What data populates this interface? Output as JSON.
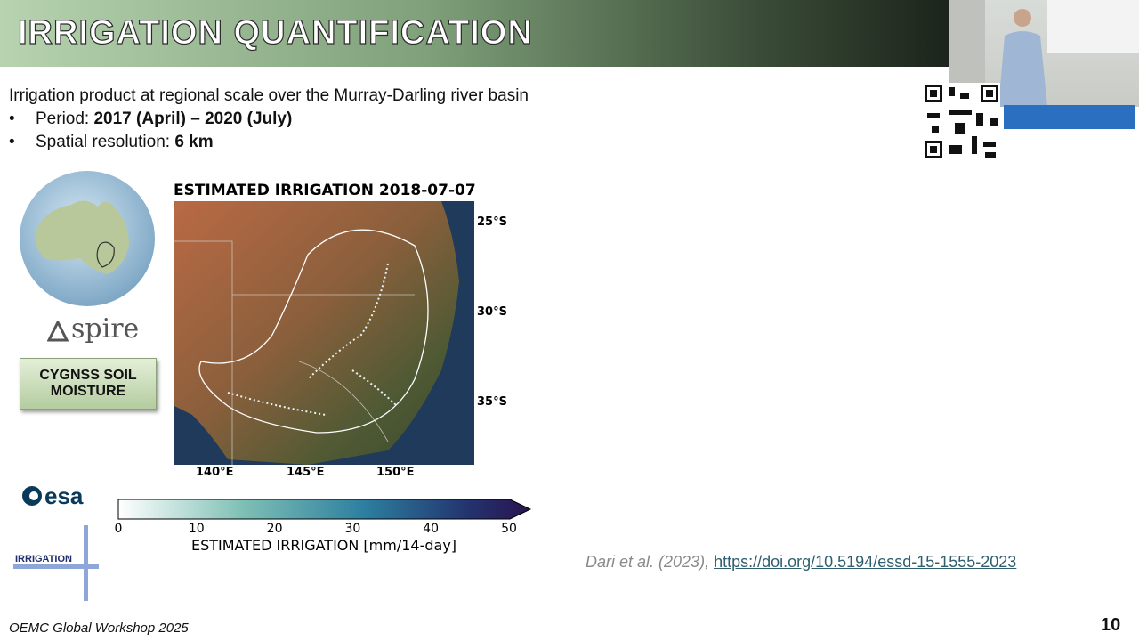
{
  "header": {
    "title": "IRRIGATION QUANTIFICATION"
  },
  "intro": "Irrigation product at regional scale over the Murray-Darling river basin",
  "bullets": [
    {
      "label": "Period: ",
      "value": "2017 (April) – 2020 (July)"
    },
    {
      "label": "Spatial resolution: ",
      "value": "6 km"
    }
  ],
  "logos": {
    "spire": "spire",
    "cygnss": "CYGNSS SOIL MOISTURE",
    "esa": "esa",
    "irrigation": "IRRIGATION"
  },
  "map": {
    "title": "ESTIMATED IRRIGATION 2018-07-07",
    "lat_labels": [
      "25°S",
      "30°S",
      "35°S"
    ],
    "lon_labels": [
      "140°E",
      "145°E",
      "150°E"
    ],
    "colorbar": {
      "ticks": [
        0,
        10,
        20,
        30,
        40,
        50
      ],
      "label": "ESTIMATED IRRIGATION [mm/14-day]"
    }
  },
  "citation": {
    "authors": "Dari et al. (2023),",
    "link": "https://doi.org/10.5194/essd-15-1555-2023"
  },
  "footer": {
    "event": "OEMC Global Workshop 2025",
    "page": "10"
  }
}
